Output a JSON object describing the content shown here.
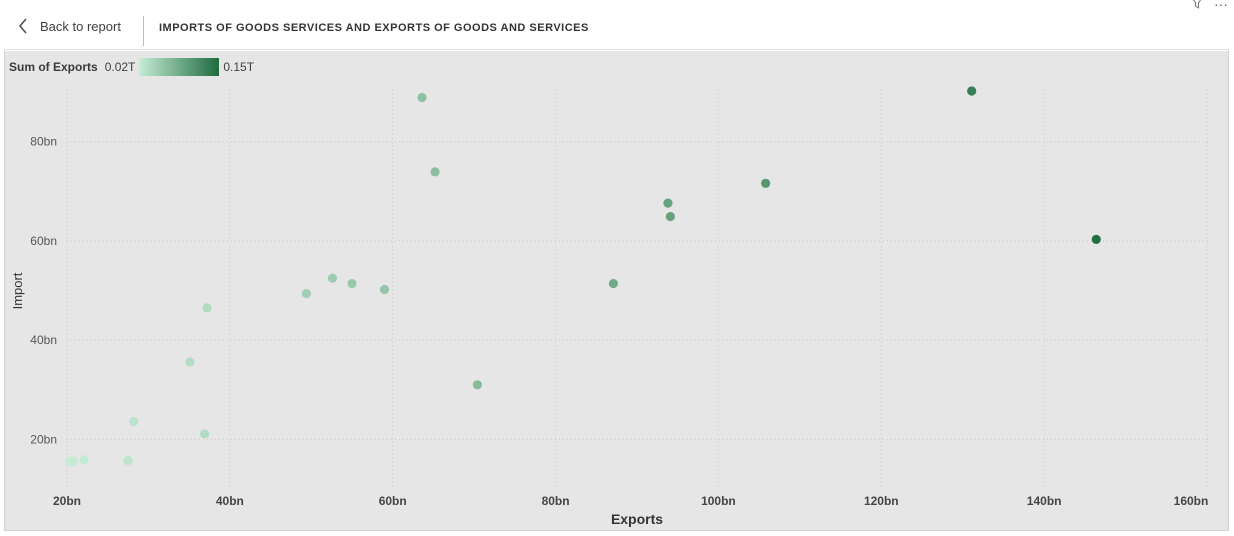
{
  "header": {
    "back_label": "Back to report",
    "title": "IMPORTS OF GOODS SERVICES AND EXPORTS OF GOODS AND SERVICES"
  },
  "legend": {
    "title": "Sum of Exports",
    "min_label": "0.02T",
    "max_label": "0.15T",
    "color_low": "#c6ecd5",
    "color_high": "#1e6b40"
  },
  "chart_data": {
    "type": "scatter",
    "title": "IMPORTS OF GOODS SERVICES AND EXPORTS OF GOODS AND SERVICES",
    "xlabel": "Exports",
    "ylabel": "Import",
    "xlim": [
      20,
      160
    ],
    "ylim": [
      10,
      90
    ],
    "x_unit": "bn",
    "y_unit": "bn",
    "x_ticks": [
      "20bn",
      "40bn",
      "60bn",
      "80bn",
      "100bn",
      "120bn",
      "140bn",
      "160bn"
    ],
    "y_ticks": [
      "20bn",
      "40bn",
      "60bn",
      "80bn"
    ],
    "x_tick_values": [
      20,
      40,
      60,
      80,
      100,
      120,
      140,
      160
    ],
    "y_tick_values": [
      20,
      40,
      60,
      80
    ],
    "grid": true,
    "color_scale": {
      "min": 20,
      "max": 150,
      "low": "#c6ecd5",
      "high": "#1e6b40"
    },
    "points": [
      {
        "x": 20.3,
        "y": 15.5
      },
      {
        "x": 20.8,
        "y": 15.7
      },
      {
        "x": 22.1,
        "y": 15.9
      },
      {
        "x": 27.5,
        "y": 15.7
      },
      {
        "x": 28.2,
        "y": 23.6
      },
      {
        "x": 35.1,
        "y": 35.6
      },
      {
        "x": 36.9,
        "y": 21.1
      },
      {
        "x": 37.2,
        "y": 46.5
      },
      {
        "x": 49.4,
        "y": 49.4
      },
      {
        "x": 52.6,
        "y": 52.5
      },
      {
        "x": 55.0,
        "y": 51.4
      },
      {
        "x": 59.0,
        "y": 50.2
      },
      {
        "x": 63.6,
        "y": 88.9
      },
      {
        "x": 65.2,
        "y": 73.9
      },
      {
        "x": 70.4,
        "y": 31.0
      },
      {
        "x": 87.1,
        "y": 51.4
      },
      {
        "x": 93.8,
        "y": 67.6
      },
      {
        "x": 94.1,
        "y": 64.9
      },
      {
        "x": 105.8,
        "y": 71.6
      },
      {
        "x": 131.1,
        "y": 90.2
      },
      {
        "x": 146.4,
        "y": 60.3
      }
    ]
  }
}
